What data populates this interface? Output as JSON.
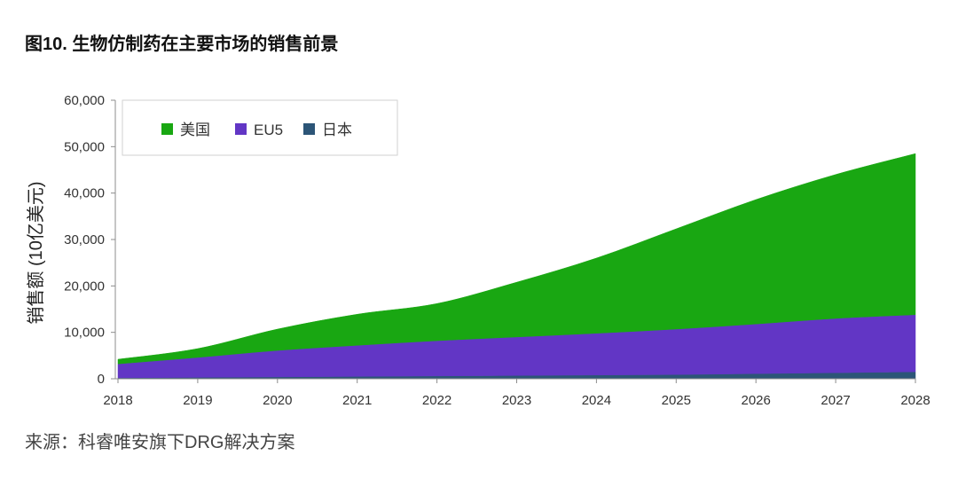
{
  "chart_data": {
    "type": "area",
    "stacked": true,
    "title": "图10. 生物仿制药在主要市场的销售前景",
    "xlabel": "",
    "ylabel": "销售额 (10亿美元)",
    "categories": [
      "2018",
      "2019",
      "2020",
      "2021",
      "2022",
      "2023",
      "2024",
      "2025",
      "2026",
      "2027",
      "2028"
    ],
    "ylim": [
      0,
      60000
    ],
    "yticks": [
      0,
      10000,
      20000,
      30000,
      40000,
      50000,
      60000
    ],
    "ytick_labels": [
      "0",
      "10,000",
      "20,000",
      "30,000",
      "40,000",
      "50,000",
      "60,000"
    ],
    "grid": false,
    "legend_position": "top-left",
    "series": [
      {
        "name": "美国",
        "color": "#19a712",
        "values": [
          1000,
          1900,
          4600,
          6700,
          8000,
          11800,
          16200,
          21600,
          26800,
          31000,
          34700
        ]
      },
      {
        "name": "EU5",
        "color": "#6236c5",
        "values": [
          3000,
          4300,
          5700,
          6700,
          7600,
          8300,
          9000,
          9800,
          10700,
          11700,
          12300
        ]
      },
      {
        "name": "日本",
        "color": "#2c5577",
        "values": [
          200,
          300,
          400,
          500,
          600,
          700,
          800,
          900,
          1100,
          1300,
          1500
        ]
      }
    ]
  },
  "source": "来源：科睿唯安旗下DRG解决方案"
}
